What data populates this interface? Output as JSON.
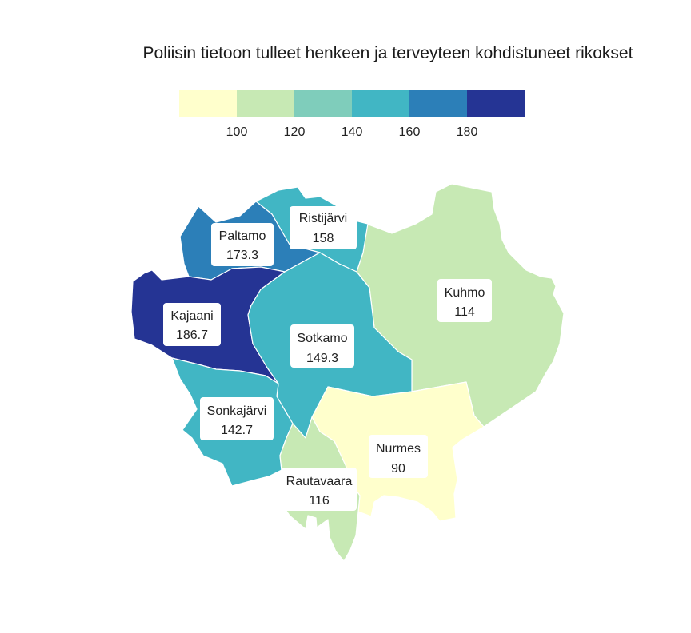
{
  "title": "Poliisin tietoon tulleet henkeen ja terveyteen kohdistuneet rikokset",
  "legend": {
    "ticks": [
      "100",
      "120",
      "140",
      "160",
      "180"
    ],
    "colors": [
      "#ffffcc",
      "#c7e9b4",
      "#7fcdbb",
      "#41b6c4",
      "#2c7fb8",
      "#253494"
    ],
    "breaks": [
      100,
      120,
      140,
      160,
      180
    ]
  },
  "regions": [
    {
      "id": "kajaani",
      "name": "Kajaani",
      "value": "186.7",
      "color": "#253494"
    },
    {
      "id": "paltamo",
      "name": "Paltamo",
      "value": "173.3",
      "color": "#2c7fb8"
    },
    {
      "id": "ristijarvi",
      "name": "Ristijärvi",
      "value": "158",
      "color": "#41b6c4"
    },
    {
      "id": "sotkamo",
      "name": "Sotkamo",
      "value": "149.3",
      "color": "#41b6c4"
    },
    {
      "id": "sonkajarvi",
      "name": "Sonkajärvi",
      "value": "142.7",
      "color": "#41b6c4"
    },
    {
      "id": "rautavaara",
      "name": "Rautavaara",
      "value": "116",
      "color": "#c7e9b4"
    },
    {
      "id": "kuhmo",
      "name": "Kuhmo",
      "value": "114",
      "color": "#c7e9b4"
    },
    {
      "id": "nurmes",
      "name": "Nurmes",
      "value": "90",
      "color": "#ffffcc"
    }
  ]
}
